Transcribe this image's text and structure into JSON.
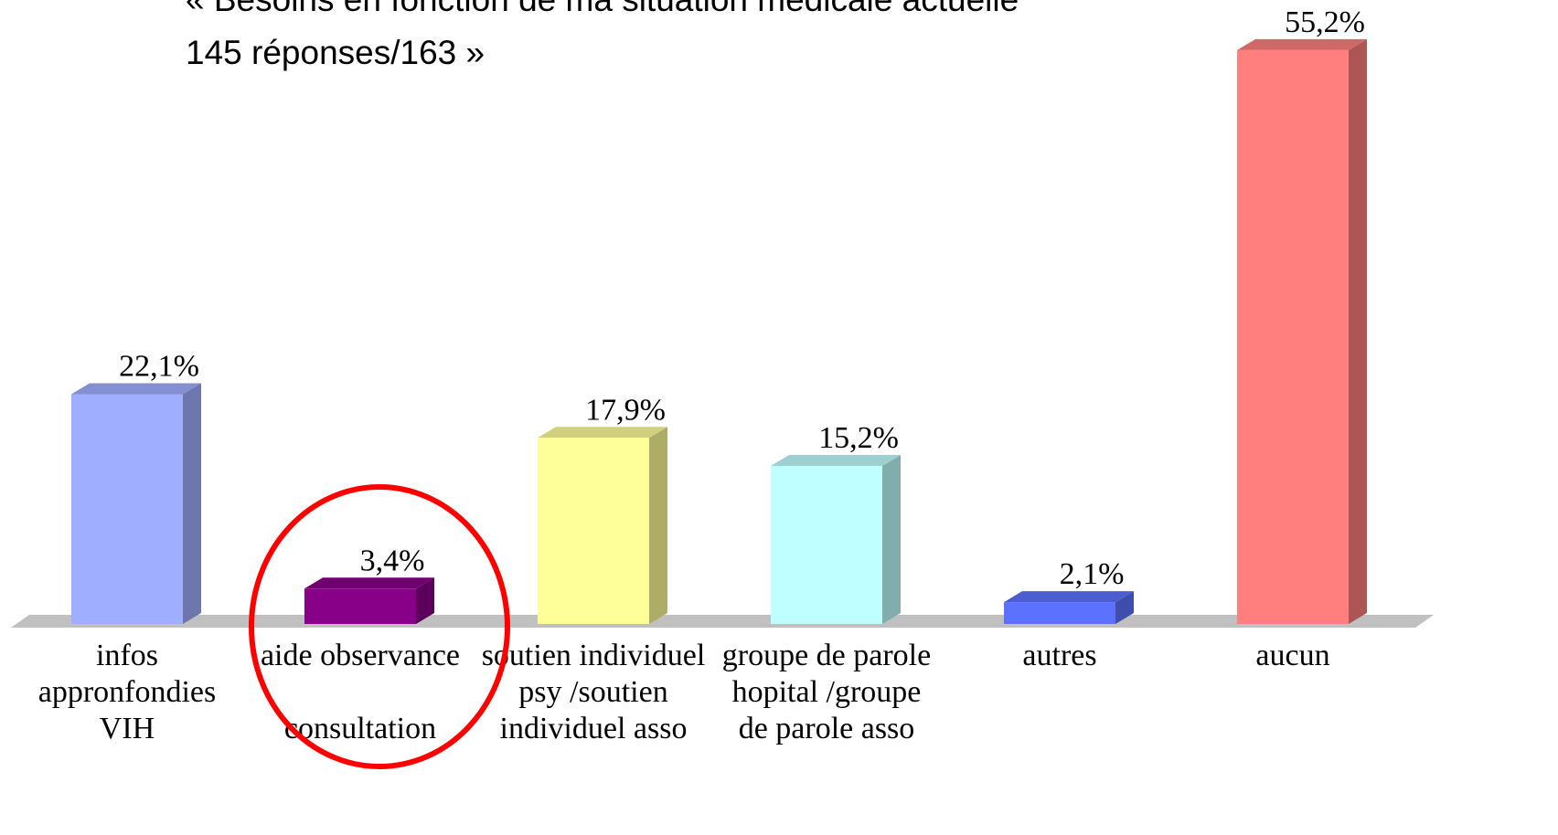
{
  "chart_data": {
    "type": "bar3d",
    "title": [
      "« Besoins en fonction de ma situation médicale actuelle",
      "145 réponses/163 »"
    ],
    "categories": [
      "infos\nappronfondies\nVIH",
      "aide observance\n\nconsultation",
      "soutien individuel\npsy /soutien\nindividuel asso",
      "groupe de parole\nhopital /groupe\nde parole asso",
      "autres",
      "aucun"
    ],
    "values": [
      22.1,
      3.4,
      17.9,
      15.2,
      2.1,
      55.2
    ],
    "value_labels": [
      "22,1%",
      "3,4%",
      "17,9%",
      "15,2%",
      "2,1%",
      "55,2%"
    ],
    "colors": [
      "#a0aeff",
      "#880088",
      "#ffff99",
      "#bfffff",
      "#5c72ff",
      "#ff7f7f"
    ]
  }
}
